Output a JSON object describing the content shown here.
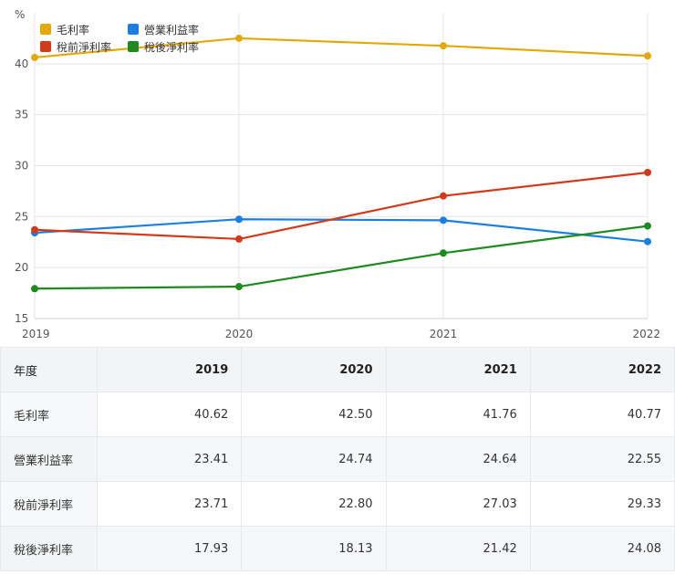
{
  "chart_data": {
    "type": "line",
    "unit_label": "%",
    "x": [
      "2019",
      "2020",
      "2021",
      "2022"
    ],
    "ylim": [
      15,
      45
    ],
    "yticks": [
      15,
      20,
      25,
      30,
      35,
      40
    ],
    "grid": true,
    "legend_position": "top-left",
    "series": [
      {
        "name": "毛利率",
        "color": "#e3a90b",
        "values": [
          40.62,
          42.5,
          41.76,
          40.77
        ]
      },
      {
        "name": "營業利益率",
        "color": "#1a7fe0",
        "values": [
          23.41,
          24.74,
          24.64,
          22.55
        ]
      },
      {
        "name": "稅前淨利率",
        "color": "#d23a1c",
        "values": [
          23.71,
          22.8,
          27.03,
          29.33
        ]
      },
      {
        "name": "稅後淨利率",
        "color": "#1f8a1f",
        "values": [
          17.93,
          18.13,
          21.42,
          24.08
        ]
      }
    ]
  },
  "table": {
    "header_label": "年度",
    "columns": [
      "2019",
      "2020",
      "2021",
      "2022"
    ],
    "rows": [
      {
        "label": "毛利率",
        "values": [
          "40.62",
          "42.50",
          "41.76",
          "40.77"
        ]
      },
      {
        "label": "營業利益率",
        "values": [
          "23.41",
          "24.74",
          "24.64",
          "22.55"
        ]
      },
      {
        "label": "稅前淨利率",
        "values": [
          "23.71",
          "22.80",
          "27.03",
          "29.33"
        ]
      },
      {
        "label": "稅後淨利率",
        "values": [
          "17.93",
          "18.13",
          "21.42",
          "24.08"
        ]
      }
    ]
  }
}
